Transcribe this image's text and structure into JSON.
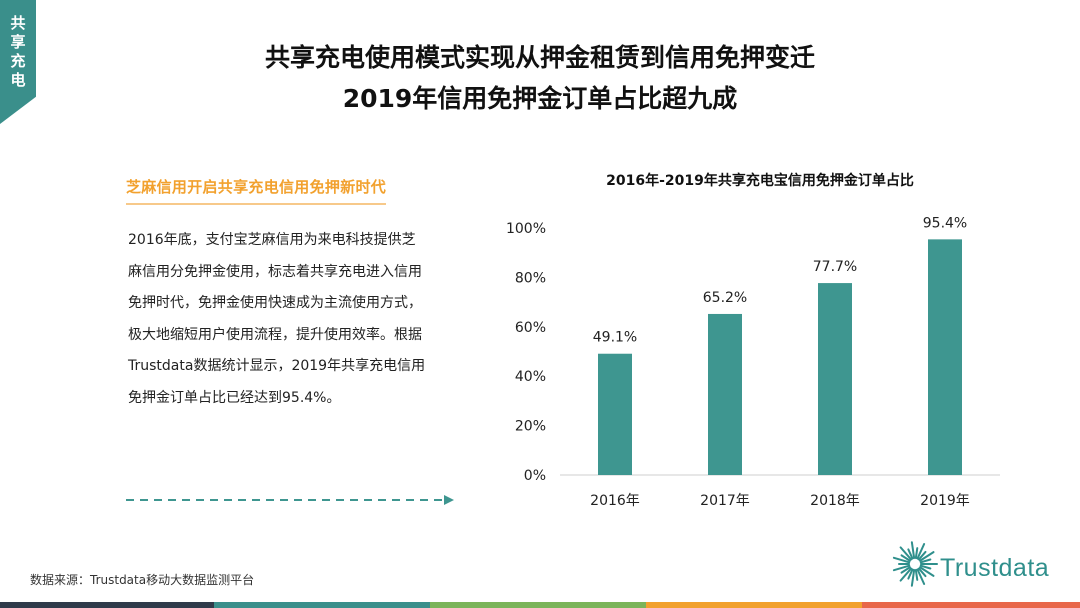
{
  "side_tab": {
    "label": "共\n享\n充\n电",
    "color": "#3a8f8b"
  },
  "title": {
    "line1": "共享充电使用模式实现从押金租赁到信用免押变迁",
    "line2": "2019年信用免押金订单占比超九成"
  },
  "section": {
    "heading": "芝麻信用开启共享充电信用免押新时代",
    "body": "2016年底，支付宝芝麻信用为来电科技提供芝麻信用分免押金使用，标志着共享充电进入信用免押时代，免押金使用快速成为主流使用方式，极大地缩短用户使用流程，提升使用效率。根据Trustdata数据统计显示，2019年共享充电信用免押金订单占比已经达到95.4%。"
  },
  "chart_data": {
    "type": "bar",
    "title": "2016年-2019年共享充电宝信用免押金订单占比",
    "categories": [
      "2016年",
      "2017年",
      "2018年",
      "2019年"
    ],
    "values": [
      49.1,
      65.2,
      77.7,
      95.4
    ],
    "data_labels": [
      "49.1%",
      "65.2%",
      "77.7%",
      "95.4%"
    ],
    "ylim": [
      0,
      100
    ],
    "yticks": [
      0,
      20,
      40,
      60,
      80,
      100
    ],
    "ytick_labels": [
      "0%",
      "20%",
      "40%",
      "60%",
      "80%",
      "100%"
    ],
    "bar_color": "#3e9690",
    "grid": false,
    "xlabel": "",
    "ylabel": ""
  },
  "footer": {
    "source": "数据来源：Trustdata移动大数据监测平台",
    "logo_text": "Trustdata",
    "bar_colors": [
      "#2f3b4a",
      "#3a8f8b",
      "#7bb45a",
      "#f2a12e",
      "#e8674a"
    ]
  }
}
